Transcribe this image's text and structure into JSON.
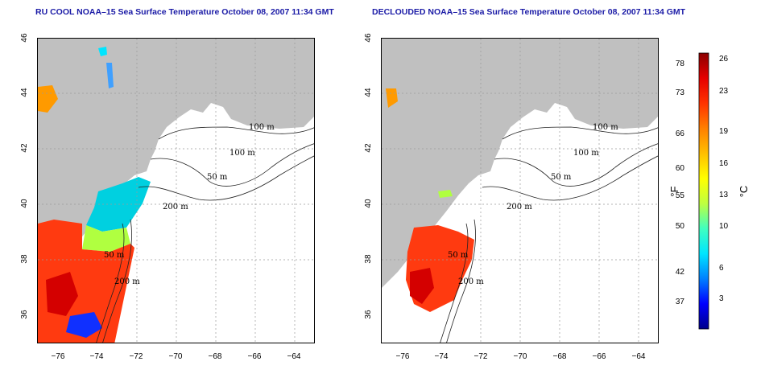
{
  "panels": [
    {
      "title": "RU COOL NOAA–15 Sea Surface Temperature October 08, 2007 11:34 GMT",
      "contour_labels": [
        "100 m",
        "100 m",
        "50 m",
        "200 m",
        "50 m",
        "200 m"
      ]
    },
    {
      "title": "DECLOUDED NOAA–15 Sea Surface Temperature October 08, 2007 11:34 GMT",
      "contour_labels": [
        "100 m",
        "100 m",
        "50 m",
        "200 m",
        "50 m",
        "200 m"
      ]
    }
  ],
  "axes": {
    "lon_ticks": [
      "−76",
      "−74",
      "−72",
      "−70",
      "−68",
      "−66",
      "−64"
    ],
    "lat_ticks": [
      "36",
      "38",
      "40",
      "42",
      "44",
      "46"
    ]
  },
  "colorbar": {
    "unit_f": "°F",
    "unit_c": "°C",
    "f_ticks": [
      "78",
      "73",
      "66",
      "60",
      "55",
      "50",
      "42",
      "37"
    ],
    "c_ticks": [
      "26",
      "23",
      "19",
      "16",
      "13",
      "10",
      "6",
      "3"
    ],
    "colors": [
      "#00008b",
      "#0000ff",
      "#0080ff",
      "#00e5ff",
      "#40ffbf",
      "#bfff40",
      "#ffff00",
      "#ffbf00",
      "#ff7f00",
      "#ff3300",
      "#e60000",
      "#8b0000"
    ]
  },
  "colors": {
    "land": "#c0c0c0",
    "water": "#ffffff",
    "title": "#1a1aa6",
    "grid": "#9a9a9a"
  }
}
